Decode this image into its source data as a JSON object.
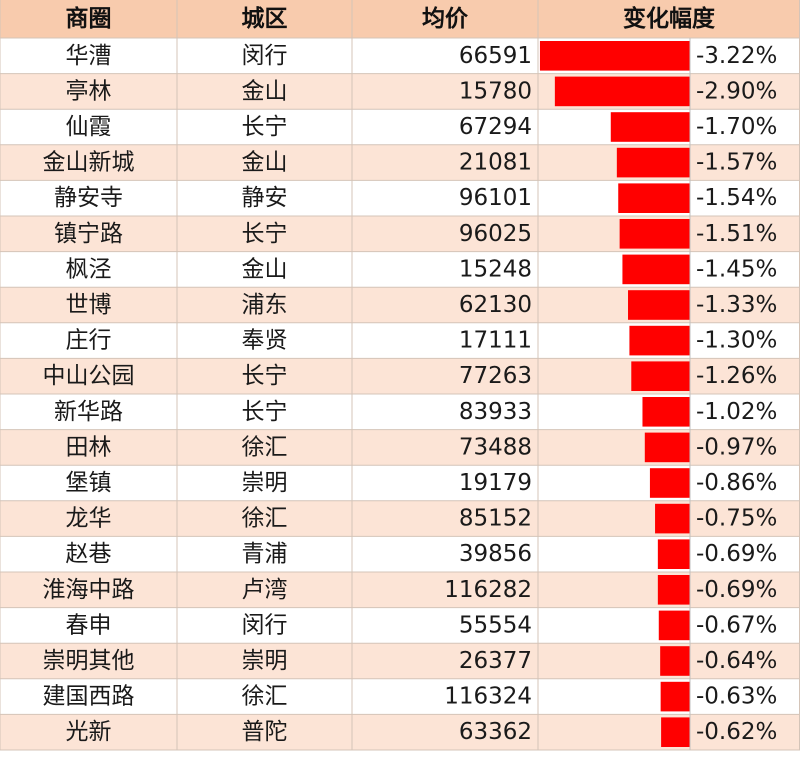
{
  "table": {
    "header": [
      "商圈",
      "城区",
      "均价",
      "变化幅度"
    ],
    "rows": [
      {
        "area": "华漕",
        "district": "闵行",
        "price": 66591,
        "change": {
          "value": -3.22,
          "label": "-3.22%"
        }
      },
      {
        "area": "亭林",
        "district": "金山",
        "price": 15780,
        "change": {
          "value": -2.9,
          "label": "-2.90%"
        }
      },
      {
        "area": "仙霞",
        "district": "长宁",
        "price": 67294,
        "change": {
          "value": -1.7,
          "label": "-1.70%"
        }
      },
      {
        "area": "金山新城",
        "district": "金山",
        "price": 21081,
        "change": {
          "value": -1.57,
          "label": "-1.57%"
        }
      },
      {
        "area": "静安寺",
        "district": "静安",
        "price": 96101,
        "change": {
          "value": -1.54,
          "label": "-1.54%"
        }
      },
      {
        "area": "镇宁路",
        "district": "长宁",
        "price": 96025,
        "change": {
          "value": -1.51,
          "label": "-1.51%"
        }
      },
      {
        "area": "枫泾",
        "district": "金山",
        "price": 15248,
        "change": {
          "value": -1.45,
          "label": "-1.45%"
        }
      },
      {
        "area": "世博",
        "district": "浦东",
        "price": 62130,
        "change": {
          "value": -1.33,
          "label": "-1.33%"
        }
      },
      {
        "area": "庄行",
        "district": "奉贤",
        "price": 17111,
        "change": {
          "value": -1.3,
          "label": "-1.30%"
        }
      },
      {
        "area": "中山公园",
        "district": "长宁",
        "price": 77263,
        "change": {
          "value": -1.26,
          "label": "-1.26%"
        }
      },
      {
        "area": "新华路",
        "district": "长宁",
        "price": 83933,
        "change": {
          "value": -1.02,
          "label": "-1.02%"
        }
      },
      {
        "area": "田林",
        "district": "徐汇",
        "price": 73488,
        "change": {
          "value": -0.97,
          "label": "-0.97%"
        }
      },
      {
        "area": "堡镇",
        "district": "崇明",
        "price": 19179,
        "change": {
          "value": -0.86,
          "label": "-0.86%"
        }
      },
      {
        "area": "龙华",
        "district": "徐汇",
        "price": 85152,
        "change": {
          "value": -0.75,
          "label": "-0.75%"
        }
      },
      {
        "area": "赵巷",
        "district": "青浦",
        "price": 39856,
        "change": {
          "value": -0.69,
          "label": "-0.69%"
        }
      },
      {
        "area": "淮海中路",
        "district": "卢湾",
        "price": 116282,
        "change": {
          "value": -0.69,
          "label": "-0.69%"
        }
      },
      {
        "area": "春申",
        "district": "闵行",
        "price": 55554,
        "change": {
          "value": -0.67,
          "label": "-0.67%"
        }
      },
      {
        "area": "崇明其他",
        "district": "崇明",
        "price": 26377,
        "change": {
          "value": -0.64,
          "label": "-0.64%"
        }
      },
      {
        "area": "建国西路",
        "district": "徐汇",
        "price": 116324,
        "change": {
          "value": -0.63,
          "label": "-0.63%"
        }
      },
      {
        "area": "光新",
        "district": "普陀",
        "price": 63362,
        "change": {
          "value": -0.62,
          "label": "-0.62%"
        }
      }
    ]
  }
}
